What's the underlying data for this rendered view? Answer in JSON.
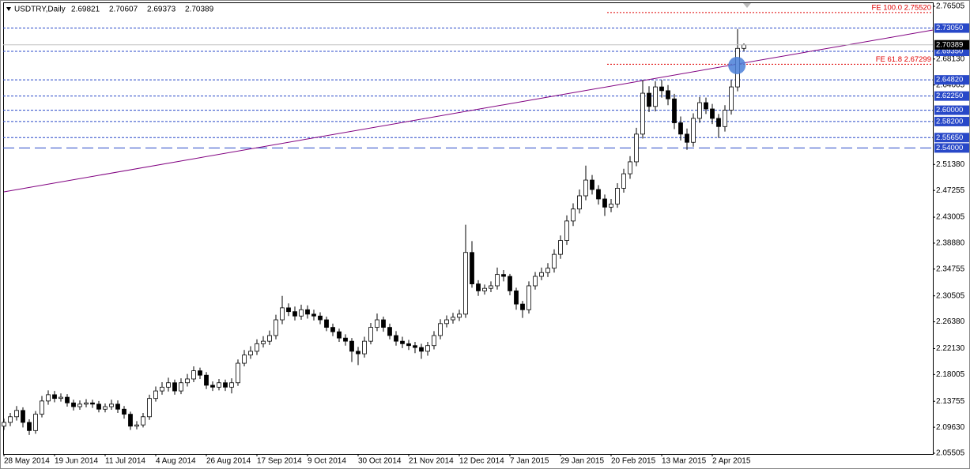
{
  "chart_data": {
    "type": "candlestick",
    "title": "USDTRY,Daily",
    "categories": [
      "28 May 2014",
      null,
      null,
      null,
      null,
      null,
      null,
      null,
      "19 Jun 2014",
      null,
      null,
      null,
      null,
      null,
      null,
      null,
      "11 Jul 2014",
      null,
      null,
      null,
      null,
      null,
      null,
      null,
      "4 Aug 2014",
      null,
      null,
      null,
      null,
      null,
      null,
      null,
      "26 Aug 2014",
      null,
      null,
      null,
      null,
      null,
      null,
      null,
      "17 Sep 2014",
      null,
      null,
      null,
      null,
      null,
      null,
      null,
      "9 Oct 2014",
      null,
      null,
      null,
      null,
      null,
      null,
      null,
      "30 Oct 2014",
      null,
      null,
      null,
      null,
      null,
      null,
      null,
      "21 Nov 2014",
      null,
      null,
      null,
      null,
      null,
      null,
      null,
      "12 Dec 2014",
      null,
      null,
      null,
      null,
      null,
      null,
      null,
      "7 Jan 2015",
      null,
      null,
      null,
      null,
      null,
      null,
      null,
      "29 Jan 2015",
      null,
      null,
      null,
      null,
      null,
      null,
      null,
      "20 Feb 2015",
      null,
      null,
      null,
      null,
      null,
      null,
      null,
      "13 Mar 2015",
      null,
      null,
      null,
      null,
      null,
      null,
      null,
      "2 Apr 2015",
      null,
      null,
      null,
      null,
      null
    ],
    "open": [
      2.098,
      2.104,
      2.113,
      2.123,
      2.104,
      2.091,
      2.117,
      2.138,
      2.148,
      2.142,
      2.144,
      2.135,
      2.129,
      2.133,
      2.135,
      2.133,
      2.125,
      2.129,
      2.133,
      2.125,
      2.117,
      2.098,
      2.1,
      2.113,
      2.142,
      2.154,
      2.16,
      2.167,
      2.154,
      2.167,
      2.173,
      2.186,
      2.179,
      2.163,
      2.16,
      2.167,
      2.16,
      2.167,
      2.198,
      2.211,
      2.217,
      2.229,
      2.233,
      2.242,
      2.267,
      2.286,
      2.28,
      2.273,
      2.283,
      2.276,
      2.273,
      2.267,
      2.255,
      2.248,
      2.238,
      2.233,
      2.217,
      2.213,
      2.233,
      2.255,
      2.267,
      2.255,
      2.242,
      2.233,
      2.229,
      2.226,
      2.223,
      2.217,
      2.226,
      2.242,
      2.261,
      2.267,
      2.271,
      2.276,
      2.374,
      2.324,
      2.313,
      2.317,
      2.321,
      2.339,
      2.336,
      2.313,
      2.292,
      2.283,
      2.321,
      2.336,
      2.342,
      2.349,
      2.371,
      2.393,
      2.424,
      2.443,
      2.464,
      2.489,
      2.474,
      2.459,
      2.446,
      2.451,
      2.476,
      2.499,
      2.518,
      2.562,
      2.627,
      2.606,
      2.637,
      2.631,
      2.618,
      2.58,
      2.562,
      2.549,
      2.587,
      2.612,
      2.602,
      2.587,
      2.574,
      2.6,
      2.637,
      2.69821
    ],
    "high": [
      2.11,
      2.119,
      2.13,
      2.128,
      2.109,
      2.122,
      2.146,
      2.155,
      2.154,
      2.15,
      2.149,
      2.14,
      2.139,
      2.141,
      2.14,
      2.138,
      2.134,
      2.14,
      2.139,
      2.13,
      2.121,
      2.106,
      2.119,
      2.148,
      2.161,
      2.168,
      2.175,
      2.172,
      2.174,
      2.181,
      2.193,
      2.191,
      2.184,
      2.169,
      2.173,
      2.172,
      2.174,
      2.204,
      2.219,
      2.225,
      2.236,
      2.241,
      2.25,
      2.275,
      2.305,
      2.293,
      2.288,
      2.291,
      2.29,
      2.283,
      2.279,
      2.272,
      2.261,
      2.253,
      2.244,
      2.238,
      2.224,
      2.24,
      2.262,
      2.277,
      2.272,
      2.261,
      2.249,
      2.24,
      2.235,
      2.232,
      2.229,
      2.232,
      2.249,
      2.268,
      2.274,
      2.278,
      2.283,
      2.418,
      2.392,
      2.33,
      2.323,
      2.328,
      2.35,
      2.346,
      2.34,
      2.318,
      2.297,
      2.328,
      2.343,
      2.35,
      2.357,
      2.379,
      2.401,
      2.433,
      2.452,
      2.474,
      2.512,
      2.497,
      2.481,
      2.466,
      2.459,
      2.484,
      2.507,
      2.527,
      2.572,
      2.648,
      2.638,
      2.646,
      2.648,
      2.64,
      2.626,
      2.59,
      2.571,
      2.595,
      2.621,
      2.62,
      2.61,
      2.594,
      2.608,
      2.648,
      2.729,
      2.70607
    ],
    "low": [
      2.092,
      2.098,
      2.107,
      2.096,
      2.084,
      2.086,
      2.112,
      2.132,
      2.136,
      2.137,
      2.129,
      2.123,
      2.124,
      2.128,
      2.127,
      2.12,
      2.12,
      2.124,
      2.119,
      2.11,
      2.092,
      2.093,
      2.096,
      2.108,
      2.137,
      2.148,
      2.153,
      2.148,
      2.149,
      2.161,
      2.168,
      2.173,
      2.157,
      2.154,
      2.155,
      2.154,
      2.15,
      2.162,
      2.193,
      2.205,
      2.211,
      2.223,
      2.227,
      2.236,
      2.26,
      2.273,
      2.266,
      2.267,
      2.269,
      2.266,
      2.26,
      2.249,
      2.241,
      2.232,
      2.226,
      2.2,
      2.195,
      2.207,
      2.228,
      2.249,
      2.248,
      2.236,
      2.226,
      2.222,
      2.219,
      2.214,
      2.205,
      2.21,
      2.22,
      2.236,
      2.255,
      2.261,
      2.265,
      2.27,
      2.318,
      2.305,
      2.307,
      2.311,
      2.315,
      2.328,
      2.306,
      2.283,
      2.27,
      2.277,
      2.315,
      2.33,
      2.335,
      2.342,
      2.364,
      2.386,
      2.416,
      2.436,
      2.457,
      2.466,
      2.45,
      2.432,
      2.438,
      2.445,
      2.469,
      2.491,
      2.511,
      2.555,
      2.597,
      2.598,
      2.62,
      2.608,
      2.57,
      2.552,
      2.537,
      2.542,
      2.58,
      2.594,
      2.578,
      2.556,
      2.566,
      2.593,
      2.63,
      2.69373
    ],
    "close": [
      2.104,
      2.113,
      2.123,
      2.104,
      2.091,
      2.117,
      2.138,
      2.148,
      2.142,
      2.144,
      2.135,
      2.129,
      2.133,
      2.135,
      2.133,
      2.125,
      2.129,
      2.133,
      2.125,
      2.117,
      2.098,
      2.1,
      2.113,
      2.142,
      2.154,
      2.16,
      2.167,
      2.154,
      2.167,
      2.173,
      2.186,
      2.179,
      2.163,
      2.16,
      2.167,
      2.16,
      2.167,
      2.198,
      2.211,
      2.217,
      2.229,
      2.233,
      2.242,
      2.267,
      2.286,
      2.28,
      2.273,
      2.283,
      2.276,
      2.273,
      2.267,
      2.255,
      2.248,
      2.238,
      2.233,
      2.217,
      2.213,
      2.233,
      2.255,
      2.267,
      2.255,
      2.242,
      2.233,
      2.229,
      2.226,
      2.223,
      2.217,
      2.226,
      2.242,
      2.261,
      2.267,
      2.271,
      2.276,
      2.374,
      2.324,
      2.313,
      2.317,
      2.321,
      2.339,
      2.336,
      2.313,
      2.292,
      2.283,
      2.321,
      2.336,
      2.342,
      2.349,
      2.371,
      2.393,
      2.424,
      2.443,
      2.464,
      2.489,
      2.474,
      2.459,
      2.446,
      2.451,
      2.476,
      2.499,
      2.518,
      2.562,
      2.627,
      2.606,
      2.637,
      2.631,
      2.618,
      2.58,
      2.562,
      2.549,
      2.587,
      2.612,
      2.602,
      2.587,
      2.574,
      2.6,
      2.637,
      2.69821,
      2.70389
    ],
    "up_color": "#ffffff",
    "down_color": "#000000",
    "candle_outline": "#000000",
    "ylim": [
      2.05505,
      2.76505
    ],
    "yticks": [
      2.76505,
      {
        "value": 2.6813,
        "label": "2.68130"
      },
      2.64005,
      {
        "value": 2.5138,
        "label": "2.51380"
      },
      2.47255,
      2.43005,
      {
        "value": 2.3888,
        "label": "2.38880"
      },
      2.34755,
      2.30505,
      {
        "value": 2.2638,
        "label": "2.26380"
      },
      {
        "value": 2.2213,
        "label": "2.22130"
      },
      2.18005,
      2.13755,
      {
        "value": 2.0963,
        "label": "2.09630"
      },
      2.05505
    ],
    "levels": [
      {
        "value": 2.7305,
        "label": "2.73050"
      },
      {
        "value": 2.6935,
        "label": "2.69350"
      },
      {
        "value": 2.6482,
        "label": "2.64820"
      },
      {
        "value": 2.6225,
        "label": "2.62250"
      },
      {
        "value": 2.6,
        "label": "2.60000"
      },
      {
        "value": 2.582,
        "label": "2.58200"
      },
      {
        "value": 2.5565,
        "label": "2.55650"
      },
      {
        "value": 2.54,
        "label": "2.54000"
      }
    ],
    "level_color": "#2848c8",
    "fib_levels": [
      {
        "value": 2.7552,
        "label": "FE 100.0 2.75520"
      },
      {
        "value": 2.67299,
        "label": "FE 61.8 2.67299"
      }
    ],
    "fib_color": "#e00000",
    "trend_line": {
      "x": [
        0,
        146.9
      ],
      "y": [
        2.4703,
        2.7274
      ],
      "color": "#800080"
    },
    "marker": {
      "x": 115.9,
      "y": 2.671,
      "color": "#4a7fd8"
    }
  }
}
